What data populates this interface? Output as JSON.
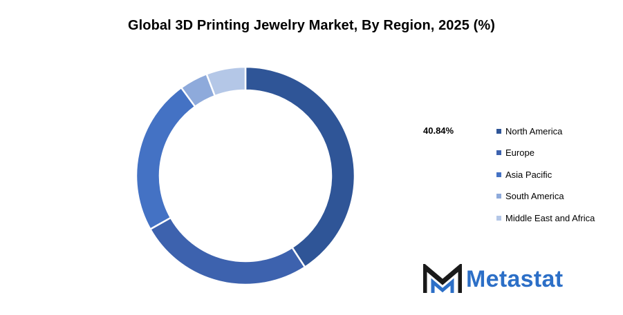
{
  "chart_data": {
    "type": "pie",
    "title": "Global 3D Printing Jewelry Market, By Region, 2025 (%)",
    "donut": true,
    "highlight_label": "40.84%",
    "categories": [
      "North America",
      "Europe",
      "Asia Pacific",
      "South America",
      "Middle East and Africa"
    ],
    "values": [
      40.84,
      26.0,
      23.16,
      4.2,
      5.8
    ],
    "colors": [
      "#2f5597",
      "#3d62ae",
      "#4472c4",
      "#8eaadb",
      "#b4c7e7"
    ],
    "legend_position": "right"
  },
  "brand": {
    "name": "Metastat",
    "icon": "metastat-logo-icon",
    "color": "#2c6fc7"
  }
}
